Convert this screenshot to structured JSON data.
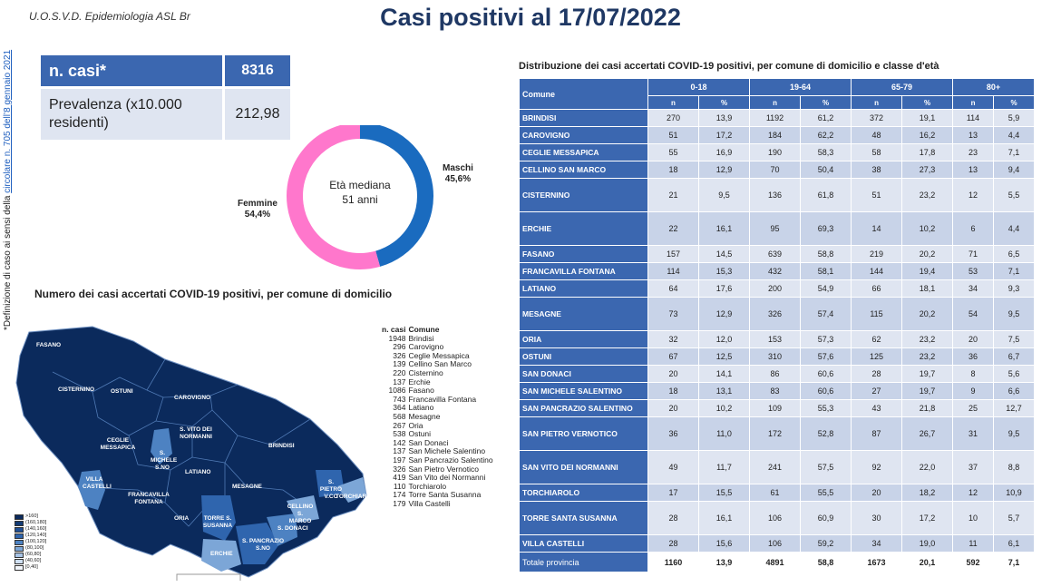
{
  "header": {
    "org": "U.O.S.V.D. Epidemiologia ASL Br",
    "title": "Casi positivi al 17/07/2022"
  },
  "side_note": {
    "text": "*Definizione di caso ai sensi della ",
    "link": "circolare n. 705 dell’8 gennaio 2021"
  },
  "kpi": {
    "cases_label": "n. casi*",
    "cases_value": "8316",
    "prev_label": "Prevalenza (x10.000 residenti)",
    "prev_value": "212,98"
  },
  "donut": {
    "center_line1": "Età mediana",
    "center_line2": "51 anni",
    "male_label": "Maschi",
    "male_pct": "45,6%",
    "female_label": "Femmine",
    "female_pct": "54,4%",
    "male_value": 45.6,
    "female_value": 54.4,
    "male_color": "#1a6bbf",
    "female_color": "#ff77cc"
  },
  "map": {
    "title": "Numero dei casi accertati COVID-19 positivi, per comune di domicilio",
    "labels": [
      "FASANO",
      "CISTERNINO",
      "OSTUNI",
      "CAROVIGNO",
      "CEGLIE MESSAPICA",
      "S. VITO DEI NORMANNI",
      "BRINDISI",
      "S. MICHELE S.NO",
      "LATIANO",
      "VILLA CASTELLI",
      "FRANCAVILLA FONTANA",
      "MESAGNE",
      "S. PIETRO V.CO",
      "TORCHIAROLO",
      "CELLINO S. MARCO",
      "S. DONACI",
      "ORIA",
      "TORRE S. SUSANNA",
      "S. PANCRAZIO S.NO",
      "ERCHIE"
    ],
    "legend": [
      ">160]",
      "(160,180]",
      "(140,160]",
      "(120,140]",
      "(100,120]",
      "(80,100]",
      "(60,80]",
      "(40,60]",
      "[0,40]"
    ]
  },
  "counts": {
    "col_n": "n. casi",
    "col_comune": "Comune",
    "rows": [
      [
        "1948",
        "Brindisi"
      ],
      [
        "296",
        "Carovigno"
      ],
      [
        "326",
        "Ceglie Messapica"
      ],
      [
        "139",
        "Cellino San Marco"
      ],
      [
        "220",
        "Cisternino"
      ],
      [
        "137",
        "Erchie"
      ],
      [
        "1086",
        "Fasano"
      ],
      [
        "743",
        "Francavilla Fontana"
      ],
      [
        "364",
        "Latiano"
      ],
      [
        "568",
        "Mesagne"
      ],
      [
        "267",
        "Oria"
      ],
      [
        "538",
        "Ostuni"
      ],
      [
        "142",
        "San Donaci"
      ],
      [
        "137",
        "San Michele Salentino"
      ],
      [
        "197",
        "San Pancrazio Salentino"
      ],
      [
        "326",
        "San Pietro Vernotico"
      ],
      [
        "419",
        "San Vito dei Normanni"
      ],
      [
        "110",
        "Torchiarolo"
      ],
      [
        "174",
        "Torre Santa Susanna"
      ],
      [
        "179",
        "Villa Castelli"
      ]
    ]
  },
  "table": {
    "title": "Distribuzione dei casi accertati COVID-19 positivi, per comune di domicilio e classe d'età",
    "comune_header": "Comune",
    "groups": [
      "0-18",
      "19-64",
      "65-79",
      "80+"
    ],
    "n_label": "n",
    "pct_label": "%",
    "rows": [
      {
        "name": "BRINDISI",
        "vals": [
          "270",
          "13,9",
          "1192",
          "61,2",
          "372",
          "19,1",
          "114",
          "5,9"
        ]
      },
      {
        "name": "CAROVIGNO",
        "vals": [
          "51",
          "17,2",
          "184",
          "62,2",
          "48",
          "16,2",
          "13",
          "4,4"
        ]
      },
      {
        "name": "CEGLIE MESSAPICA",
        "vals": [
          "55",
          "16,9",
          "190",
          "58,3",
          "58",
          "17,8",
          "23",
          "7,1"
        ]
      },
      {
        "name": "CELLINO SAN MARCO",
        "vals": [
          "18",
          "12,9",
          "70",
          "50,4",
          "38",
          "27,3",
          "13",
          "9,4"
        ]
      },
      {
        "name": "CISTERNINO",
        "vals": [
          "21",
          "9,5",
          "136",
          "61,8",
          "51",
          "23,2",
          "12",
          "5,5"
        ]
      },
      {
        "name": "ERCHIE",
        "vals": [
          "22",
          "16,1",
          "95",
          "69,3",
          "14",
          "10,2",
          "6",
          "4,4"
        ]
      },
      {
        "name": "FASANO",
        "vals": [
          "157",
          "14,5",
          "639",
          "58,8",
          "219",
          "20,2",
          "71",
          "6,5"
        ]
      },
      {
        "name": "FRANCAVILLA FONTANA",
        "vals": [
          "114",
          "15,3",
          "432",
          "58,1",
          "144",
          "19,4",
          "53",
          "7,1"
        ]
      },
      {
        "name": "LATIANO",
        "vals": [
          "64",
          "17,6",
          "200",
          "54,9",
          "66",
          "18,1",
          "34",
          "9,3"
        ]
      },
      {
        "name": "MESAGNE",
        "vals": [
          "73",
          "12,9",
          "326",
          "57,4",
          "115",
          "20,2",
          "54",
          "9,5"
        ]
      },
      {
        "name": "ORIA",
        "vals": [
          "32",
          "12,0",
          "153",
          "57,3",
          "62",
          "23,2",
          "20",
          "7,5"
        ]
      },
      {
        "name": "OSTUNI",
        "vals": [
          "67",
          "12,5",
          "310",
          "57,6",
          "125",
          "23,2",
          "36",
          "6,7"
        ]
      },
      {
        "name": "SAN DONACI",
        "vals": [
          "20",
          "14,1",
          "86",
          "60,6",
          "28",
          "19,7",
          "8",
          "5,6"
        ]
      },
      {
        "name": "SAN MICHELE SALENTINO",
        "vals": [
          "18",
          "13,1",
          "83",
          "60,6",
          "27",
          "19,7",
          "9",
          "6,6"
        ]
      },
      {
        "name": "SAN PANCRAZIO SALENTINO",
        "vals": [
          "20",
          "10,2",
          "109",
          "55,3",
          "43",
          "21,8",
          "25",
          "12,7"
        ]
      },
      {
        "name": "SAN PIETRO VERNOTICO",
        "vals": [
          "36",
          "11,0",
          "172",
          "52,8",
          "87",
          "26,7",
          "31",
          "9,5"
        ]
      },
      {
        "name": "SAN VITO DEI NORMANNI",
        "vals": [
          "49",
          "11,7",
          "241",
          "57,5",
          "92",
          "22,0",
          "37",
          "8,8"
        ]
      },
      {
        "name": "TORCHIAROLO",
        "vals": [
          "17",
          "15,5",
          "61",
          "55,5",
          "20",
          "18,2",
          "12",
          "10,9"
        ]
      },
      {
        "name": "TORRE SANTA SUSANNA",
        "vals": [
          "28",
          "16,1",
          "106",
          "60,9",
          "30",
          "17,2",
          "10",
          "5,7"
        ]
      },
      {
        "name": "VILLA CASTELLI",
        "vals": [
          "28",
          "15,6",
          "106",
          "59,2",
          "34",
          "19,0",
          "11",
          "6,1"
        ]
      }
    ],
    "total": {
      "name": "Totale provincia",
      "vals": [
        "1160",
        "13,9",
        "4891",
        "58,8",
        "1673",
        "20,1",
        "592",
        "7,1"
      ]
    }
  },
  "colors": {
    "accent": "#3b67b0",
    "title": "#1f3864",
    "map_dark": "#0b2a5c"
  }
}
